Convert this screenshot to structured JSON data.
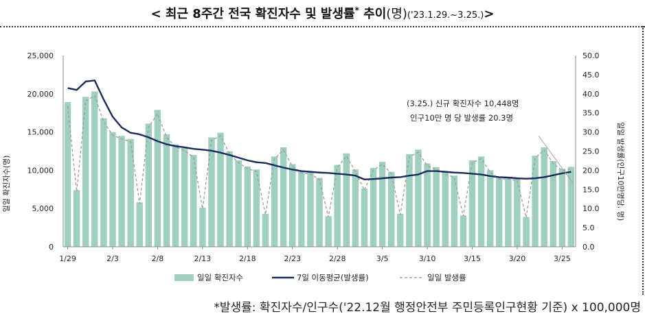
{
  "title": {
    "main": "< 최근 8주간 전국 확진자수 및 발생률",
    "asterisk": "*",
    "suffix": " 추이",
    "unit": "(명)",
    "period": "('23.1.29.~3.25.)",
    "close": ">"
  },
  "footnote": "*발생률: 확진자수/인구수('22.12월 행정안전부 주민등록인구현황 기준) x 100,000명",
  "colors": {
    "bar": "#9fcfbf",
    "moving_avg": "#1a2a5c",
    "daily_rate": "#a0a0a0",
    "axis": "#888888"
  },
  "chart_data": {
    "type": "bar",
    "ylabel_left": "일일 확진자수(명)",
    "ylabel_right": "일일 발생률(인구10만명당, 명)",
    "ylim_left": [
      0,
      25000
    ],
    "ylim_right": [
      0,
      50
    ],
    "yticks_left": [
      "0",
      "5,000",
      "10,000",
      "15,000",
      "20,000",
      "25,000"
    ],
    "yticks_right": [
      "0.0",
      "5.0",
      "10.0",
      "15.0",
      "20.0",
      "25.0",
      "30.0",
      "35.0",
      "40.0",
      "45.0",
      "50.0"
    ],
    "xtick_labels": [
      {
        "index": 0,
        "label": "1/29"
      },
      {
        "index": 5,
        "label": "2/3"
      },
      {
        "index": 10,
        "label": "2/8"
      },
      {
        "index": 15,
        "label": "2/13"
      },
      {
        "index": 20,
        "label": "2/18"
      },
      {
        "index": 25,
        "label": "2/23"
      },
      {
        "index": 30,
        "label": "2/28"
      },
      {
        "index": 35,
        "label": "3/5"
      },
      {
        "index": 40,
        "label": "3/10"
      },
      {
        "index": 45,
        "label": "3/15"
      },
      {
        "index": 50,
        "label": "3/20"
      },
      {
        "index": 55,
        "label": "3/25"
      }
    ],
    "series": [
      {
        "name": "일일 확진자수",
        "axis": "left",
        "style": "bar",
        "values": [
          18900,
          7400,
          19600,
          20300,
          16800,
          15000,
          14500,
          14100,
          5800,
          16100,
          17900,
          14700,
          13400,
          12900,
          12000,
          5100,
          14300,
          14900,
          12500,
          11300,
          10500,
          10100,
          4300,
          11800,
          13000,
          10800,
          9900,
          9800,
          9000,
          4000,
          10700,
          12200,
          10100,
          7600,
          10300,
          11100,
          9800,
          4300,
          12100,
          12700,
          10900,
          10400,
          9800,
          9300,
          4100,
          11300,
          11800,
          10000,
          9100,
          9100,
          8900,
          3900,
          11900,
          13000,
          11200,
          10200,
          10448
        ]
      },
      {
        "name": "7일 이동평균(발생률)",
        "axis": "right",
        "style": "line",
        "values": [
          41.5,
          41.0,
          43.2,
          43.5,
          38.5,
          34.0,
          31.2,
          29.8,
          29.4,
          28.6,
          27.6,
          26.8,
          26.3,
          26.0,
          25.6,
          25.4,
          25.1,
          24.6,
          24.0,
          23.3,
          22.6,
          22.1,
          21.9,
          21.3,
          20.7,
          20.2,
          19.8,
          19.6,
          19.4,
          19.3,
          19.1,
          18.9,
          18.6,
          17.6,
          17.7,
          17.9,
          18.1,
          18.2,
          18.6,
          18.9,
          19.8,
          19.8,
          19.6,
          19.4,
          19.3,
          19.1,
          18.9,
          18.5,
          18.2,
          18.1,
          17.9,
          17.8,
          17.9,
          18.2,
          18.7,
          19.2,
          19.6
        ]
      },
      {
        "name": "일일 발생률",
        "axis": "right",
        "style": "dashed",
        "values": [
          36.8,
          14.4,
          38.1,
          39.5,
          32.7,
          29.2,
          28.2,
          27.5,
          11.3,
          31.3,
          34.8,
          28.6,
          26.1,
          25.1,
          23.4,
          9.9,
          27.8,
          29.0,
          24.3,
          22.0,
          20.4,
          19.7,
          8.4,
          23.0,
          25.3,
          21.0,
          19.3,
          19.1,
          17.5,
          7.8,
          20.8,
          23.7,
          19.7,
          14.8,
          20.0,
          21.6,
          19.1,
          8.4,
          23.5,
          24.7,
          21.2,
          20.2,
          19.1,
          18.1,
          8.0,
          22.0,
          23.0,
          19.5,
          17.7,
          17.7,
          17.3,
          7.6,
          23.2,
          25.3,
          21.8,
          19.9,
          20.3
        ]
      }
    ],
    "annotation": {
      "line1": "(3.25.) 신규 확진자수 10,448명",
      "line2": "인구10만 명 당 발생률 20.3명"
    },
    "legend_position": "bottom"
  }
}
